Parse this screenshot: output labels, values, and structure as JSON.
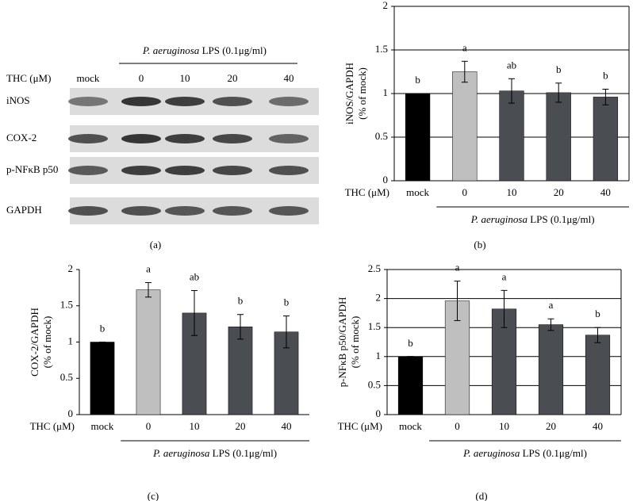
{
  "panel_a": {
    "title_species": "P. aeruginosa",
    "title_rest": "LPS (0.1μg/ml)",
    "thc_label": "THC (μM)",
    "lanes": [
      "mock",
      "0",
      "10",
      "20",
      "40"
    ],
    "rows": [
      "iNOS",
      "COX-2",
      "p-NFκB p50",
      "GAPDH"
    ],
    "caption": "(a)"
  },
  "chart_data": [
    {
      "type": "bar",
      "ylabel": "iNOS/GAPDH",
      "ylabel_unit": "(% of mock)",
      "x_label": "THC (μM)",
      "group_species": "P. aeruginosa",
      "group_rest": "LPS (0.1μg/ml)",
      "caption": "(b)",
      "categories": [
        "mock",
        "0",
        "10",
        "20",
        "40"
      ],
      "values": [
        1,
        1.25,
        1.03,
        1.01,
        0.96
      ],
      "errors": [
        0,
        0.12,
        0.14,
        0.11,
        0.09
      ],
      "annotations": [
        "b",
        "a",
        "ab",
        "b",
        "b"
      ],
      "colors": [
        "#000000",
        "#bfbfbf",
        "#4a4d52",
        "#4a4d52",
        "#4a4d52"
      ],
      "ylim": [
        0,
        2
      ],
      "yticks": [
        0,
        0.5,
        1,
        1.5,
        2
      ],
      "grid": true,
      "frame": true
    },
    {
      "type": "bar",
      "ylabel": "COX-2/GAPDH",
      "ylabel_unit": "(% of mock)",
      "x_label": "THC (μM)",
      "group_species": "P. aeruginosa",
      "group_rest": "LPS (0.1μg/ml)",
      "caption": "(c)",
      "categories": [
        "mock",
        "0",
        "10",
        "20",
        "40"
      ],
      "values": [
        1,
        1.72,
        1.4,
        1.21,
        1.14
      ],
      "errors": [
        0,
        0.1,
        0.31,
        0.17,
        0.22
      ],
      "annotations": [
        "b",
        "a",
        "ab",
        "b",
        "b"
      ],
      "colors": [
        "#000000",
        "#bfbfbf",
        "#4a4d52",
        "#4a4d52",
        "#4a4d52"
      ],
      "ylim": [
        0,
        2
      ],
      "yticks": [
        0,
        0.5,
        1,
        1.5,
        2
      ],
      "grid": false,
      "frame": false
    },
    {
      "type": "bar",
      "ylabel": "p-NFκB p50/GAPDH",
      "ylabel_unit": "(% of mock)",
      "x_label": "THC (μM)",
      "group_species": "P. aeruginosa",
      "group_rest": "LPS (0.1μg/ml)",
      "caption": "(d)",
      "categories": [
        "mock",
        "0",
        "10",
        "20",
        "40"
      ],
      "values": [
        1,
        1.96,
        1.82,
        1.55,
        1.37
      ],
      "errors": [
        0,
        0.34,
        0.32,
        0.1,
        0.13
      ],
      "annotations": [
        "b",
        "a",
        "a",
        "a",
        "b"
      ],
      "colors": [
        "#000000",
        "#bfbfbf",
        "#4a4d52",
        "#4a4d52",
        "#4a4d52"
      ],
      "ylim": [
        0,
        2.5
      ],
      "yticks": [
        0,
        0.5,
        1,
        1.5,
        2,
        2.5
      ],
      "grid": true,
      "frame": true
    }
  ]
}
